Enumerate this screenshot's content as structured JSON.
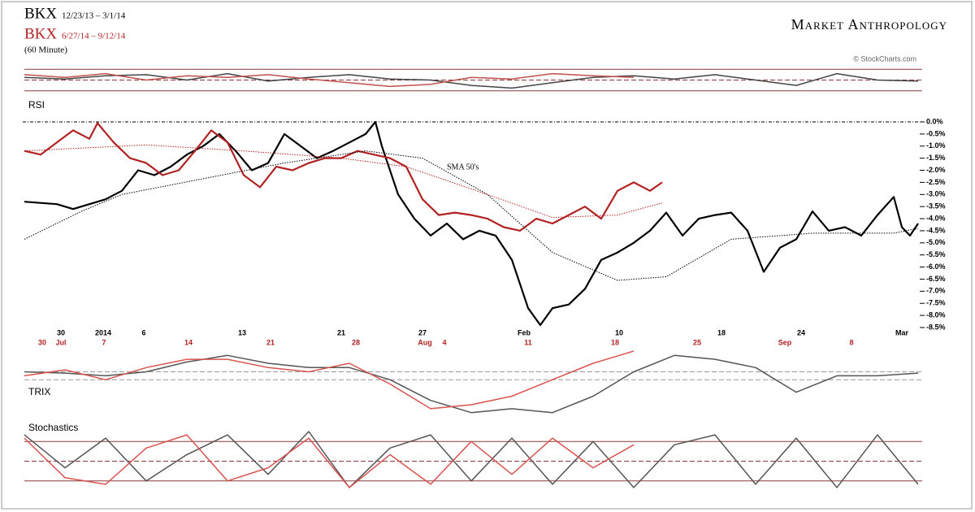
{
  "header": {
    "series_1_symbol": "BKX",
    "series_1_period": "12/23/13 – 3/1/14",
    "series_2_symbol": "BKX",
    "series_2_period": "6/27/14 – 9/12/14",
    "interval": "(60 Minute)",
    "brand": "Market Anthropology",
    "source": "© StockCharts.com"
  },
  "chart_data": [
    {
      "type": "line",
      "title": "RSI",
      "xlim": [
        0,
        110
      ],
      "ylim": [
        25,
        75
      ],
      "reference_lines": [
        70,
        50,
        30
      ],
      "series": [
        {
          "color": "#444444",
          "x": [
            0,
            5,
            10,
            15,
            20,
            25,
            30,
            35,
            40,
            45,
            50,
            55,
            60,
            65,
            70,
            75,
            80,
            85,
            90,
            95,
            100,
            105,
            110
          ],
          "values": [
            55,
            52,
            58,
            60,
            50,
            62,
            48,
            55,
            60,
            52,
            50,
            40,
            35,
            45,
            55,
            58,
            52,
            60,
            50,
            40,
            62,
            50,
            48
          ]
        },
        {
          "color": "#c0504d",
          "x": [
            0,
            5,
            10,
            15,
            20,
            25,
            30,
            35,
            40,
            45,
            50,
            55,
            60,
            65,
            70,
            75
          ],
          "values": [
            60,
            55,
            62,
            50,
            58,
            55,
            60,
            52,
            45,
            38,
            42,
            55,
            52,
            62,
            58,
            55
          ]
        }
      ]
    },
    {
      "type": "line",
      "annotation": "SMA 50's",
      "xlim": [
        0,
        110
      ],
      "ylim": [
        -8.5,
        0
      ],
      "yticks": [
        {
          "value": 0,
          "label": "0.0%"
        },
        {
          "value": -0.5,
          "label": "-0.5%"
        },
        {
          "value": -1,
          "label": "-1.0%"
        },
        {
          "value": -1.5,
          "label": "-1.5%"
        },
        {
          "value": -2,
          "label": "-2.0%"
        },
        {
          "value": -2.5,
          "label": "-2.5%"
        },
        {
          "value": -3,
          "label": "-3.0%"
        },
        {
          "value": -3.5,
          "label": "-3.5%"
        },
        {
          "value": -4,
          "label": "-4.0%"
        },
        {
          "value": -4.5,
          "label": "-4.5%"
        },
        {
          "value": -5,
          "label": "-5.0%"
        },
        {
          "value": -5.5,
          "label": "-5.5%"
        },
        {
          "value": -6,
          "label": "-6.0%"
        },
        {
          "value": -6.5,
          "label": "-6.5%"
        },
        {
          "value": -7,
          "label": "-7.0%"
        },
        {
          "value": -7.5,
          "label": "-7.5%"
        },
        {
          "value": -8,
          "label": "-8.0%"
        },
        {
          "value": -8.5,
          "label": "-8.5%"
        }
      ],
      "xticks": [
        {
          "value": 4.5,
          "label": "30"
        },
        {
          "value": 9.7,
          "label": "2014"
        },
        {
          "value": 14.7,
          "label": "6"
        },
        {
          "value": 26.8,
          "label": "13"
        },
        {
          "value": 39,
          "label": "21"
        },
        {
          "value": 49,
          "label": "27"
        },
        {
          "value": 61.5,
          "label": "Feb"
        },
        {
          "value": 73.2,
          "label": "10"
        },
        {
          "value": 85.8,
          "label": "18"
        },
        {
          "value": 95.6,
          "label": "24"
        },
        {
          "value": 108,
          "label": "Mar"
        }
      ],
      "xticks_2": [
        {
          "value": 2.2,
          "label": "30"
        },
        {
          "value": 4.5,
          "label": "Jul"
        },
        {
          "value": 9.8,
          "label": "7"
        },
        {
          "value": 20.2,
          "label": "14"
        },
        {
          "value": 30.3,
          "label": "21"
        },
        {
          "value": 40.8,
          "label": "28"
        },
        {
          "value": 49.3,
          "label": "Aug"
        },
        {
          "value": 51.7,
          "label": "4"
        },
        {
          "value": 62,
          "label": "11"
        },
        {
          "value": 72.7,
          "label": "18"
        },
        {
          "value": 82.8,
          "label": "25"
        },
        {
          "value": 93.6,
          "label": "Sep"
        },
        {
          "value": 101.8,
          "label": "8"
        }
      ],
      "series": [
        {
          "color": "#000000",
          "style": "solid",
          "x": [
            0,
            2,
            4,
            6,
            8,
            10,
            12,
            14,
            16,
            18,
            20,
            22,
            24,
            26,
            28,
            30,
            32,
            34,
            36,
            38,
            40,
            42,
            43.2,
            44,
            46,
            48,
            50,
            52,
            54,
            56,
            58,
            60,
            62,
            63.5,
            65,
            67,
            69,
            71,
            73,
            75,
            77,
            79,
            81,
            83,
            85,
            87,
            89,
            91,
            93,
            95,
            97,
            99,
            101,
            103,
            105,
            107,
            108,
            109,
            110
          ],
          "values": [
            -3.3,
            -3.35,
            -3.4,
            -3.6,
            -3.4,
            -3.2,
            -2.85,
            -2.0,
            -2.2,
            -1.85,
            -1.35,
            -1.0,
            -0.5,
            -1.2,
            -2.0,
            -1.7,
            -0.5,
            -1.0,
            -1.5,
            -1.2,
            -0.85,
            -0.5,
            0,
            -1.0,
            -3.0,
            -4.0,
            -4.7,
            -4.2,
            -4.85,
            -4.5,
            -4.7,
            -5.7,
            -7.7,
            -8.4,
            -7.7,
            -7.55,
            -6.9,
            -5.7,
            -5.4,
            -5.0,
            -4.5,
            -3.75,
            -4.7,
            -4.0,
            -3.85,
            -3.75,
            -4.5,
            -6.2,
            -5.2,
            -4.85,
            -3.7,
            -4.5,
            -4.35,
            -4.7,
            -3.85,
            -3.1,
            -4.35,
            -4.7,
            -4.2
          ]
        },
        {
          "color": "#b22222",
          "style": "solid",
          "x": [
            0,
            2,
            4,
            6,
            8,
            9,
            11,
            13,
            15,
            17,
            19,
            21,
            23,
            25,
            27,
            29,
            31,
            33,
            35,
            37,
            39,
            41,
            43,
            45,
            47,
            49,
            51,
            53,
            55,
            57,
            59,
            61,
            63,
            65,
            67,
            69,
            71,
            73,
            75,
            77,
            78.5
          ],
          "values": [
            -1.2,
            -1.35,
            -0.85,
            -0.35,
            -0.7,
            -0.05,
            -0.85,
            -1.5,
            -1.7,
            -2.2,
            -2.0,
            -1.2,
            -0.35,
            -0.85,
            -2.2,
            -2.7,
            -1.85,
            -2.0,
            -1.7,
            -1.5,
            -1.5,
            -1.2,
            -1.35,
            -1.5,
            -1.85,
            -3.2,
            -3.85,
            -3.75,
            -3.85,
            -4.0,
            -4.35,
            -4.5,
            -4.0,
            -4.2,
            -3.85,
            -3.5,
            -4.0,
            -2.85,
            -2.5,
            -2.85,
            -2.5
          ]
        },
        {
          "color": "#000000",
          "style": "dotted",
          "x": [
            0,
            7,
            12,
            22,
            32,
            42,
            49,
            57,
            65,
            73,
            79,
            87,
            97,
            107,
            110
          ],
          "values": [
            -4.85,
            -3.7,
            -3.0,
            -2.35,
            -1.7,
            -1.2,
            -1.5,
            -3.0,
            -5.4,
            -6.55,
            -6.4,
            -4.85,
            -4.6,
            -4.6,
            -4.4
          ]
        },
        {
          "color": "#b22222",
          "style": "dotted",
          "x": [
            0,
            15,
            27,
            39,
            47,
            57,
            65,
            73,
            78.5
          ],
          "values": [
            -1.2,
            -0.95,
            -1.2,
            -1.5,
            -1.85,
            -3.0,
            -3.95,
            -3.85,
            -3.35
          ]
        }
      ]
    },
    {
      "type": "line",
      "title": "TRIX",
      "xlim": [
        0,
        110
      ],
      "ylim": [
        -1.3,
        0.8
      ],
      "reference_lines": [
        0.12,
        -0.12
      ],
      "series": [
        {
          "color": "#555555",
          "x": [
            0,
            5,
            10,
            15,
            20,
            25,
            30,
            35,
            40,
            45,
            50,
            55,
            60,
            65,
            70,
            75,
            80,
            85,
            90,
            95,
            100,
            105,
            110
          ],
          "values": [
            0.12,
            0.08,
            0,
            0.12,
            0.42,
            0.62,
            0.38,
            0.25,
            0.25,
            -0.12,
            -0.75,
            -1.12,
            -1.0,
            -1.12,
            -0.62,
            0.12,
            0.62,
            0.5,
            0.25,
            -0.5,
            0,
            0,
            0.08
          ]
        },
        {
          "color": "#d9534f",
          "x": [
            0,
            5,
            10,
            15,
            20,
            25,
            30,
            35,
            40,
            45,
            50,
            55,
            60,
            65,
            70,
            75
          ],
          "values": [
            0,
            0.18,
            -0.12,
            0.25,
            0.5,
            0.5,
            0.25,
            0.12,
            0.38,
            -0.25,
            -1.0,
            -0.88,
            -0.62,
            -0.12,
            0.38,
            0.75
          ]
        }
      ]
    },
    {
      "type": "line",
      "title": "Stochastics",
      "xlim": [
        0,
        110
      ],
      "ylim": [
        0,
        100
      ],
      "reference_lines": [
        80,
        50,
        20
      ],
      "series": [
        {
          "color": "#555555",
          "x": [
            0,
            5,
            10,
            15,
            20,
            25,
            30,
            35,
            40,
            45,
            50,
            55,
            60,
            65,
            70,
            75,
            80,
            85,
            90,
            95,
            100,
            105,
            110
          ],
          "values": [
            90,
            40,
            85,
            20,
            60,
            90,
            30,
            95,
            10,
            70,
            90,
            20,
            85,
            15,
            80,
            10,
            75,
            90,
            15,
            85,
            10,
            90,
            15
          ]
        },
        {
          "color": "#d9534f",
          "x": [
            0,
            5,
            10,
            15,
            20,
            25,
            30,
            35,
            40,
            45,
            50,
            55,
            60,
            65,
            70,
            75
          ],
          "values": [
            85,
            25,
            15,
            70,
            90,
            20,
            40,
            85,
            10,
            60,
            15,
            80,
            30,
            85,
            40,
            75
          ]
        }
      ]
    }
  ]
}
